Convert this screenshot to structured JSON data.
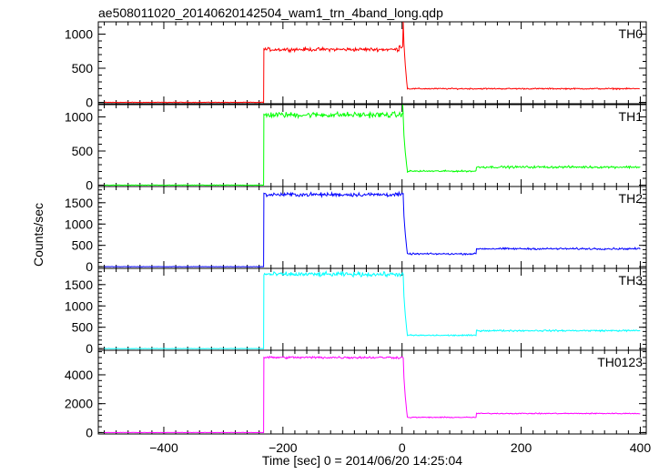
{
  "chart_data": {
    "type": "line",
    "title": "ae508011020_20140620142504_wam1_trn_4band_long.qdp",
    "xlabel": "Time [sec] 0 = 2014/06/20 14:25:04",
    "ylabel": "Counts/sec",
    "xlim": [
      -510,
      410
    ],
    "x_ticks": [
      -400,
      -200,
      0,
      200,
      400
    ],
    "x_tick_labels": [
      "−400",
      "−200",
      "0",
      "200",
      "400"
    ],
    "grid": false,
    "legend": "none",
    "panels": [
      {
        "name": "TH0",
        "color": "#ff0000",
        "ylim": [
          -20,
          1180
        ],
        "y_ticks": [
          0,
          500,
          1000
        ],
        "y_tick_labels": [
          "0",
          "500",
          "1000"
        ],
        "segments": [
          {
            "x0": -500,
            "x1": -232,
            "level": 0,
            "noise": 3
          },
          {
            "x0": -232,
            "x1": -5,
            "level": 775,
            "noise": 22
          },
          {
            "x0": -5,
            "x1": 2,
            "level": 820,
            "noise": 25
          },
          {
            "x0": 9,
            "x1": 400,
            "level": 200,
            "noise": 8
          }
        ],
        "spike": {
          "x": 2,
          "y": 1200
        },
        "drop": {
          "x0": 2,
          "x1": 9,
          "y0": 1200,
          "y1": 200
        }
      },
      {
        "name": "TH1",
        "color": "#00ff00",
        "ylim": [
          -20,
          1180
        ],
        "y_ticks": [
          0,
          500,
          1000
        ],
        "y_tick_labels": [
          "0",
          "500",
          "1000"
        ],
        "segments": [
          {
            "x0": -500,
            "x1": -232,
            "level": 0,
            "noise": 3
          },
          {
            "x0": -232,
            "x1": 2,
            "level": 1030,
            "noise": 35
          },
          {
            "x0": 9,
            "x1": 125,
            "level": 205,
            "noise": 10
          },
          {
            "x0": 125,
            "x1": 400,
            "level": 265,
            "noise": 14
          }
        ],
        "spike": {
          "x": 1,
          "y": 1180
        },
        "drop": {
          "x0": 2,
          "x1": 9,
          "y0": 1000,
          "y1": 205
        }
      },
      {
        "name": "TH2",
        "color": "#0000ff",
        "ylim": [
          -40,
          1880
        ],
        "y_ticks": [
          0,
          500,
          1000,
          1500
        ],
        "y_tick_labels": [
          "0",
          "500",
          "1000",
          "1500"
        ],
        "segments": [
          {
            "x0": -500,
            "x1": -232,
            "level": 0,
            "noise": 4
          },
          {
            "x0": -232,
            "x1": 2,
            "level": 1690,
            "noise": 40
          },
          {
            "x0": 9,
            "x1": 125,
            "level": 300,
            "noise": 16
          },
          {
            "x0": 125,
            "x1": 400,
            "level": 420,
            "noise": 18
          }
        ],
        "drop": {
          "x0": 2,
          "x1": 9,
          "y0": 1650,
          "y1": 300
        }
      },
      {
        "name": "TH3",
        "color": "#00ffff",
        "ylim": [
          -40,
          1880
        ],
        "y_ticks": [
          0,
          500,
          1000,
          1500
        ],
        "y_tick_labels": [
          "0",
          "500",
          "1000",
          "1500"
        ],
        "segments": [
          {
            "x0": -500,
            "x1": -232,
            "level": 0,
            "noise": 4
          },
          {
            "x0": -232,
            "x1": 2,
            "level": 1740,
            "noise": 45
          },
          {
            "x0": 9,
            "x1": 125,
            "level": 310,
            "noise": 14
          },
          {
            "x0": 125,
            "x1": 400,
            "level": 420,
            "noise": 16
          }
        ],
        "drop": {
          "x0": 2,
          "x1": 9,
          "y0": 1700,
          "y1": 310
        }
      },
      {
        "name": "TH0123",
        "color": "#ff00ff",
        "ylim": [
          -100,
          5700
        ],
        "y_ticks": [
          0,
          2000,
          4000
        ],
        "y_tick_labels": [
          "0",
          "2000",
          "4000"
        ],
        "segments": [
          {
            "x0": -500,
            "x1": -232,
            "level": 0,
            "noise": 10
          },
          {
            "x0": -232,
            "x1": 2,
            "level": 5200,
            "noise": 70
          },
          {
            "x0": 9,
            "x1": 125,
            "level": 1050,
            "noise": 30
          },
          {
            "x0": 125,
            "x1": 400,
            "level": 1320,
            "noise": 30
          }
        ],
        "drop": {
          "x0": 2,
          "x1": 9,
          "y0": 5200,
          "y1": 1050
        }
      }
    ]
  }
}
